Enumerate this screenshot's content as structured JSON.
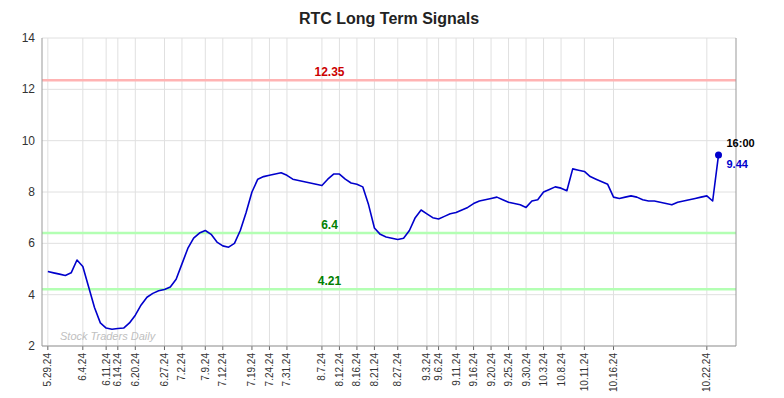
{
  "chart_data": {
    "type": "line",
    "title": "RTC Long Term Signals",
    "categories": [
      "5.29.24",
      null,
      null,
      null,
      null,
      null,
      "6.4.24",
      null,
      null,
      null,
      "6.11.24",
      null,
      "6.14.24",
      null,
      null,
      "6.20.24",
      null,
      null,
      null,
      null,
      "6.27.24",
      null,
      null,
      "7.2.24",
      null,
      null,
      null,
      "7.9.24",
      null,
      null,
      "7.12.24",
      null,
      null,
      null,
      null,
      "7.19.24",
      null,
      null,
      "7.24.24",
      null,
      null,
      "7.31.24",
      null,
      null,
      null,
      null,
      null,
      "8.7.24",
      null,
      null,
      "8.12.24",
      null,
      null,
      "8.16.24",
      null,
      null,
      "8.21.24",
      null,
      null,
      null,
      "8.27.24",
      null,
      null,
      null,
      null,
      "9.3.24",
      null,
      "9.6.24",
      null,
      null,
      "9.11.24",
      null,
      null,
      "9.16.24",
      null,
      null,
      "9.20.24",
      null,
      null,
      "9.25.24",
      null,
      null,
      "9.30.24",
      null,
      null,
      "10.3.24",
      null,
      null,
      "10.8.24",
      null,
      null,
      null,
      "10.11.24",
      null,
      null,
      null,
      null,
      "10.16.24",
      null,
      null,
      null,
      null,
      null,
      null,
      null,
      null,
      null,
      null,
      null,
      null,
      null,
      null,
      null,
      "10.22.24",
      null,
      null
    ],
    "values": [
      4.9,
      4.85,
      4.8,
      4.75,
      4.85,
      5.35,
      5.1,
      4.3,
      3.5,
      2.9,
      2.7,
      2.65,
      2.68,
      2.7,
      2.9,
      3.2,
      3.6,
      3.9,
      4.05,
      4.15,
      4.2,
      4.3,
      4.6,
      5.2,
      5.8,
      6.2,
      6.4,
      6.5,
      6.35,
      6.05,
      5.9,
      5.85,
      6.0,
      6.5,
      7.2,
      8.0,
      8.5,
      8.6,
      8.65,
      8.7,
      8.75,
      8.65,
      8.5,
      8.45,
      8.4,
      8.35,
      8.3,
      8.25,
      8.5,
      8.7,
      8.7,
      8.5,
      8.35,
      8.3,
      8.2,
      7.5,
      6.6,
      6.35,
      6.25,
      6.2,
      6.15,
      6.2,
      6.5,
      7.0,
      7.3,
      7.15,
      7.0,
      6.95,
      7.05,
      7.15,
      7.2,
      7.3,
      7.4,
      7.55,
      7.65,
      7.7,
      7.75,
      7.8,
      7.7,
      7.6,
      7.55,
      7.5,
      7.4,
      7.65,
      7.7,
      8.0,
      8.1,
      8.2,
      8.15,
      8.05,
      8.9,
      8.85,
      8.8,
      8.6,
      8.5,
      8.4,
      8.3,
      7.8,
      7.75,
      7.8,
      7.85,
      7.8,
      7.7,
      7.65,
      7.65,
      7.6,
      7.55,
      7.5,
      7.6,
      7.65,
      7.7,
      7.75,
      7.8,
      7.85,
      7.65,
      9.44
    ],
    "color": "#0000cc",
    "ylim": [
      2,
      14
    ],
    "yticks": [
      2,
      4,
      6,
      8,
      10,
      12,
      14
    ],
    "grid": true,
    "hlines": [
      {
        "value": 12.35,
        "label": "12.35",
        "color": "#ffb3b3",
        "label_color": "#cc0000"
      },
      {
        "value": 6.4,
        "label": "6.4",
        "color": "#b3ffb3",
        "label_color": "#008000"
      },
      {
        "value": 4.21,
        "label": "4.21",
        "color": "#b3ffb3",
        "label_color": "#008000"
      }
    ],
    "annotations": [
      {
        "text": "Stock Traders Daily",
        "color": "#c0c0c0"
      },
      {
        "text": "16:00"
      },
      {
        "text": "9.44",
        "value": 9.44
      }
    ]
  }
}
